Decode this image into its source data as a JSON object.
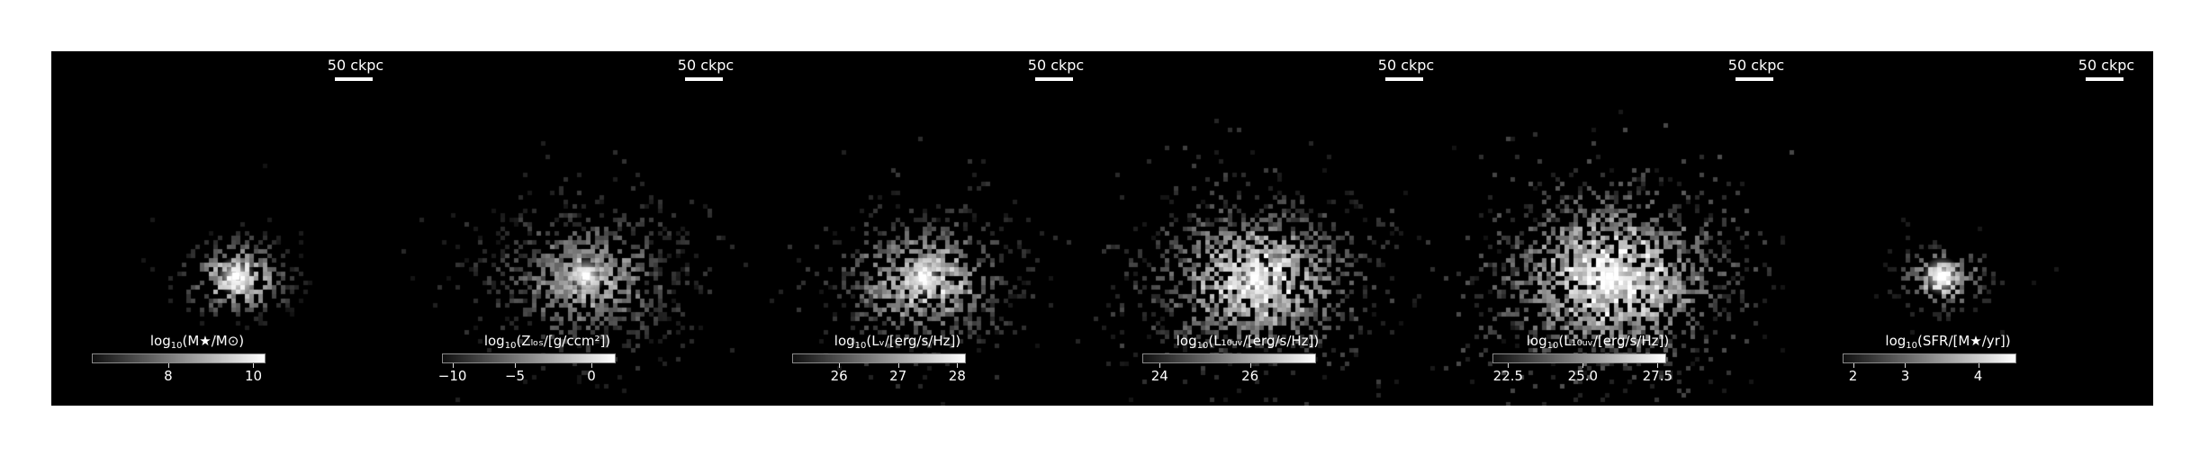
{
  "panels": [
    {
      "scale_label": "50 ckpc",
      "cb_prefix": "log",
      "cb_sub": "10",
      "cb_title": "(M★/M⊙)",
      "ticks": [
        {
          "label": "8",
          "frac": 0.44
        },
        {
          "label": "10",
          "frac": 0.93
        }
      ],
      "blob": {
        "peak": 1.0,
        "spread": 0.55,
        "noise": 0.25,
        "core": 1.0
      }
    },
    {
      "scale_label": "50 ckpc",
      "cb_prefix": "log",
      "cb_sub": "10",
      "cb_title": "(Zₗₒₛ/[g/ccm²])",
      "ticks": [
        {
          "label": "−10",
          "frac": 0.06
        },
        {
          "label": "−5",
          "frac": 0.42
        },
        {
          "label": "0",
          "frac": 0.86
        }
      ],
      "blob": {
        "peak": 0.7,
        "spread": 0.85,
        "noise": 0.5,
        "core": 1.0
      }
    },
    {
      "scale_label": "50 ckpc",
      "cb_prefix": "log",
      "cb_sub": "10",
      "cb_title": "(Lᵥ/[erg/s/Hz])",
      "ticks": [
        {
          "label": "26",
          "frac": 0.27
        },
        {
          "label": "27",
          "frac": 0.61
        },
        {
          "label": "28",
          "frac": 0.95
        }
      ],
      "blob": {
        "peak": 0.85,
        "spread": 0.8,
        "noise": 0.55,
        "core": 0.95
      }
    },
    {
      "scale_label": "50 ckpc",
      "cb_prefix": "log",
      "cb_sub": "10",
      "cb_title": "(L₁₀ᵤᵥ/[erg/s/Hz])",
      "ticks": [
        {
          "label": "24",
          "frac": 0.1
        },
        {
          "label": "26",
          "frac": 0.62
        }
      ],
      "blob": {
        "peak": 0.95,
        "spread": 0.95,
        "noise": 0.65,
        "core": 0.95
      }
    },
    {
      "scale_label": "50 ckpc",
      "cb_prefix": "log",
      "cb_sub": "10",
      "cb_title": "(L₁₀ᵤᵥ/[erg/s/Hz])",
      "ticks": [
        {
          "label": "22.5",
          "frac": 0.09
        },
        {
          "label": "25.0",
          "frac": 0.52
        },
        {
          "label": "27.5",
          "frac": 0.95
        }
      ],
      "blob": {
        "peak": 1.0,
        "spread": 1.05,
        "noise": 0.75,
        "core": 0.9
      }
    },
    {
      "scale_label": "50 ckpc",
      "cb_prefix": "log",
      "cb_sub": "10",
      "cb_title": "(SFR/[M★/yr])",
      "ticks": [
        {
          "label": "2",
          "frac": 0.06
        },
        {
          "label": "3",
          "frac": 0.36
        },
        {
          "label": "4",
          "frac": 0.78
        }
      ],
      "blob": {
        "peak": 1.0,
        "spread": 0.45,
        "noise": 0.3,
        "core": 1.0
      }
    }
  ],
  "colors": {
    "background": "#000000",
    "foreground": "#ffffff"
  }
}
